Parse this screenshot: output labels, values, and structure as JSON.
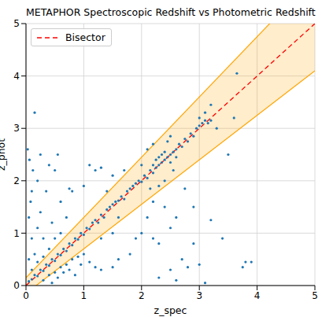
{
  "chart_data": {
    "type": "scatter",
    "title": "METAPHOR Spectroscopic Redshift vs Photometric Redshift",
    "x_label": "z_spec",
    "y_label": "z_phot",
    "xlim": [
      0,
      5
    ],
    "ylim": [
      0,
      5
    ],
    "xticks": [
      0,
      1,
      2,
      3,
      4,
      5
    ],
    "yticks": [
      0,
      1,
      2,
      3,
      4,
      5
    ],
    "grid": true,
    "legend": "upper left",
    "points": {
      "color": "#1f77b4",
      "marker": "circle",
      "data": [
        [
          0.05,
          0.08
        ],
        [
          0.1,
          0.12
        ],
        [
          0.15,
          0.2
        ],
        [
          0.2,
          0.18
        ],
        [
          0.25,
          0.3
        ],
        [
          0.3,
          0.28
        ],
        [
          0.35,
          0.4
        ],
        [
          0.4,
          0.38
        ],
        [
          0.45,
          0.5
        ],
        [
          0.5,
          0.47
        ],
        [
          0.55,
          0.6
        ],
        [
          0.6,
          0.58
        ],
        [
          0.65,
          0.7
        ],
        [
          0.7,
          0.66
        ],
        [
          0.75,
          0.8
        ],
        [
          0.8,
          0.77
        ],
        [
          0.85,
          0.9
        ],
        [
          0.9,
          0.88
        ],
        [
          0.95,
          1.0
        ],
        [
          1.0,
          0.97
        ],
        [
          0.1,
          0.3
        ],
        [
          0.2,
          0.45
        ],
        [
          0.3,
          0.55
        ],
        [
          0.15,
          0.6
        ],
        [
          0.05,
          0.5
        ],
        [
          0.1,
          0.9
        ],
        [
          0.05,
          1.3
        ],
        [
          0.08,
          1.6
        ],
        [
          0.12,
          2.2
        ],
        [
          0.03,
          2.6
        ],
        [
          0.06,
          2.4
        ],
        [
          0.2,
          1.1
        ],
        [
          0.25,
          1.4
        ],
        [
          0.3,
          0.9
        ],
        [
          0.4,
          0.7
        ],
        [
          0.45,
          1.2
        ],
        [
          0.5,
          0.9
        ],
        [
          0.6,
          1.0
        ],
        [
          0.1,
          1.8
        ],
        [
          0.2,
          2.0
        ],
        [
          0.25,
          2.5
        ],
        [
          0.15,
          3.3
        ],
        [
          0.35,
          1.8
        ],
        [
          0.4,
          2.3
        ],
        [
          0.5,
          2.2
        ],
        [
          0.55,
          2.5
        ],
        [
          0.6,
          1.6
        ],
        [
          0.7,
          1.3
        ],
        [
          0.75,
          1.85
        ],
        [
          0.8,
          1.8
        ],
        [
          0.3,
          0.1
        ],
        [
          0.4,
          0.2
        ],
        [
          0.5,
          0.25
        ],
        [
          0.6,
          0.35
        ],
        [
          0.7,
          0.4
        ],
        [
          0.8,
          0.5
        ],
        [
          0.9,
          0.55
        ],
        [
          1.0,
          0.6
        ],
        [
          0.45,
          0.05
        ],
        [
          0.55,
          0.15
        ],
        [
          0.65,
          0.25
        ],
        [
          0.75,
          0.3
        ],
        [
          0.85,
          0.2
        ],
        [
          0.95,
          0.4
        ],
        [
          1.1,
          0.45
        ],
        [
          1.2,
          0.35
        ],
        [
          1.05,
          1.1
        ],
        [
          1.1,
          1.08
        ],
        [
          1.15,
          1.2
        ],
        [
          1.2,
          1.25
        ],
        [
          1.25,
          1.2
        ],
        [
          1.3,
          1.35
        ],
        [
          1.35,
          1.3
        ],
        [
          1.4,
          1.45
        ],
        [
          1.45,
          1.5
        ],
        [
          1.5,
          1.55
        ],
        [
          1.55,
          1.6
        ],
        [
          1.6,
          1.62
        ],
        [
          1.65,
          1.7
        ],
        [
          1.7,
          1.65
        ],
        [
          1.75,
          1.8
        ],
        [
          1.8,
          1.85
        ],
        [
          1.85,
          1.9
        ],
        [
          1.9,
          1.95
        ],
        [
          1.95,
          2.0
        ],
        [
          2.0,
          1.98
        ],
        [
          1.3,
          0.9
        ],
        [
          1.5,
          1.0
        ],
        [
          1.6,
          1.3
        ],
        [
          1.4,
          1.8
        ],
        [
          1.2,
          2.2
        ],
        [
          1.3,
          2.25
        ],
        [
          1.5,
          2.1
        ],
        [
          1.0,
          1.9
        ],
        [
          1.1,
          2.3
        ],
        [
          1.7,
          2.2
        ],
        [
          1.6,
          0.5
        ],
        [
          1.8,
          0.6
        ],
        [
          1.5,
          0.35
        ],
        [
          1.3,
          0.3
        ],
        [
          1.9,
          0.9
        ],
        [
          2.05,
          2.1
        ],
        [
          2.1,
          2.05
        ],
        [
          2.15,
          2.2
        ],
        [
          2.2,
          2.15
        ],
        [
          2.2,
          2.3
        ],
        [
          2.25,
          2.25
        ],
        [
          2.25,
          2.4
        ],
        [
          2.3,
          2.3
        ],
        [
          2.3,
          2.45
        ],
        [
          2.35,
          2.35
        ],
        [
          2.35,
          2.5
        ],
        [
          2.4,
          2.4
        ],
        [
          2.4,
          2.55
        ],
        [
          2.45,
          2.45
        ],
        [
          2.5,
          2.5
        ],
        [
          2.5,
          2.35
        ],
        [
          2.55,
          2.55
        ],
        [
          2.6,
          2.6
        ],
        [
          2.6,
          2.45
        ],
        [
          2.65,
          2.7
        ],
        [
          2.7,
          2.65
        ],
        [
          2.75,
          2.8
        ],
        [
          2.8,
          2.75
        ],
        [
          2.85,
          2.9
        ],
        [
          2.9,
          2.85
        ],
        [
          2.95,
          3.0
        ],
        [
          3.0,
          3.05
        ],
        [
          3.05,
          3.1
        ],
        [
          3.1,
          3.15
        ],
        [
          3.15,
          3.1
        ],
        [
          3.2,
          3.15
        ],
        [
          3.0,
          3.2
        ],
        [
          3.1,
          3.3
        ],
        [
          3.2,
          3.45
        ],
        [
          2.1,
          2.6
        ],
        [
          2.2,
          2.7
        ],
        [
          2.3,
          1.9
        ],
        [
          2.4,
          2.0
        ],
        [
          2.15,
          1.85
        ],
        [
          2.0,
          2.3
        ],
        [
          2.45,
          2.75
        ],
        [
          2.5,
          2.85
        ],
        [
          2.55,
          2.2
        ],
        [
          2.0,
          1.0
        ],
        [
          2.2,
          0.9
        ],
        [
          2.3,
          0.8
        ],
        [
          2.1,
          1.3
        ],
        [
          2.4,
          1.5
        ],
        [
          2.5,
          1.1
        ],
        [
          2.6,
          1.3
        ],
        [
          2.7,
          0.5
        ],
        [
          2.5,
          0.3
        ],
        [
          2.8,
          0.35
        ],
        [
          2.9,
          0.8
        ],
        [
          2.3,
          0.15
        ],
        [
          2.6,
          0.1
        ],
        [
          3.0,
          0.4
        ],
        [
          3.1,
          0.05
        ],
        [
          3.2,
          1.25
        ],
        [
          2.2,
          1.6
        ],
        [
          2.75,
          1.85
        ],
        [
          3.5,
          2.5
        ],
        [
          3.6,
          3.2
        ],
        [
          3.65,
          4.05
        ],
        [
          3.75,
          0.35
        ],
        [
          3.8,
          0.45
        ],
        [
          3.9,
          0.45
        ],
        [
          3.3,
          3.0
        ],
        [
          3.4,
          0.9
        ],
        [
          2.9,
          1.5
        ]
      ]
    },
    "band": {
      "color": "orange",
      "x": [
        0,
        5
      ],
      "lower": [
        -0.15,
        4.1
      ],
      "upper": [
        0.15,
        5.9
      ]
    },
    "series": [
      {
        "name": "Bisector",
        "type": "line",
        "color": "red",
        "line_style": "dashed",
        "x": [
          0,
          5
        ],
        "values": [
          0,
          5
        ]
      }
    ]
  }
}
